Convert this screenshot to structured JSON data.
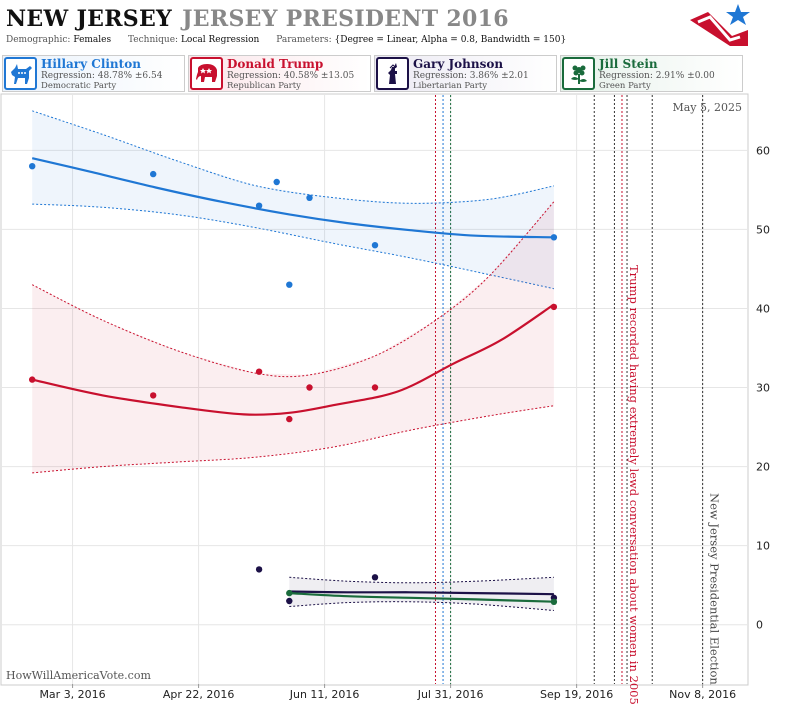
{
  "header": {
    "state": "NEW JERSEY",
    "race": "JERSEY PRESIDENT 2016",
    "demographic_label": "Demographic:",
    "demographic": "Females",
    "technique_label": "Technique:",
    "technique": "Local Regression",
    "parameters_label": "Parameters:",
    "parameters": "{Degree = Linear, Alpha = 0.8, Bandwidth = 150}"
  },
  "candidates": [
    {
      "name": "Hillary Clinton",
      "regression": "Regression: 48.78% ±6.54",
      "party": "Democratic Party",
      "color": "#1f77d4",
      "icon": "donkey-icon"
    },
    {
      "name": "Donald Trump",
      "regression": "Regression: 40.58% ±13.05",
      "party": "Republican Party",
      "color": "#c8102e",
      "icon": "elephant-icon"
    },
    {
      "name": "Gary Johnson",
      "regression": "Regression: 3.86% ±2.01",
      "party": "Libertarian Party",
      "color": "#1c1147",
      "icon": "statue-of-liberty-icon"
    },
    {
      "name": "Jill Stein",
      "regression": "Regression: 2.91% ±0.00",
      "party": "Green Party",
      "color": "#1a6b3c",
      "icon": "flower-icon"
    }
  ],
  "watermark": "HowWillAmericaVote.com",
  "date_label": "May 5, 2025",
  "chart_data": {
    "type": "scatter",
    "title": "",
    "xlabel": "",
    "ylabel": "",
    "x_ticks": [
      "Mar 3, 2016",
      "Apr 22, 2016",
      "Jun 11, 2016",
      "Jul 31, 2016",
      "Sep 19, 2016",
      "Nov 8, 2016"
    ],
    "x_range": [
      "2016-02-04",
      "2016-11-26"
    ],
    "y_ticks": [
      0,
      10,
      20,
      30,
      40,
      50,
      60
    ],
    "ylim": [
      -7.5,
      67
    ],
    "grid": true,
    "series": [
      {
        "name": "Hillary Clinton",
        "color": "#1f77d4",
        "points": [
          [
            "2016-02-16",
            58
          ],
          [
            "2016-04-04",
            57
          ],
          [
            "2016-05-16",
            53
          ],
          [
            "2016-05-23",
            56
          ],
          [
            "2016-05-28",
            43
          ],
          [
            "2016-06-05",
            54
          ],
          [
            "2016-07-01",
            48
          ],
          [
            "2016-09-10",
            49
          ]
        ],
        "trend": [
          [
            "2016-02-16",
            59
          ],
          [
            "2016-03-10",
            57.3
          ],
          [
            "2016-04-05",
            55.3
          ],
          [
            "2016-05-01",
            53.5
          ],
          [
            "2016-05-28",
            51.9
          ],
          [
            "2016-06-20",
            50.8
          ],
          [
            "2016-07-15",
            49.9
          ],
          [
            "2016-08-10",
            49.2
          ],
          [
            "2016-09-10",
            49
          ]
        ],
        "upper": [
          [
            "2016-02-16",
            65
          ],
          [
            "2016-03-15",
            62
          ],
          [
            "2016-04-15",
            58.5
          ],
          [
            "2016-05-15",
            55.5
          ],
          [
            "2016-06-15",
            54
          ],
          [
            "2016-07-15",
            53.3
          ],
          [
            "2016-08-15",
            53.8
          ],
          [
            "2016-09-10",
            55.5
          ]
        ],
        "lower": [
          [
            "2016-02-16",
            53.2
          ],
          [
            "2016-03-15",
            52.8
          ],
          [
            "2016-04-15",
            51.8
          ],
          [
            "2016-05-15",
            50.2
          ],
          [
            "2016-06-15",
            48.2
          ],
          [
            "2016-07-15",
            46.4
          ],
          [
            "2016-08-15",
            44.3
          ],
          [
            "2016-09-10",
            42.5
          ]
        ]
      },
      {
        "name": "Donald Trump",
        "color": "#c8102e",
        "points": [
          [
            "2016-02-16",
            31
          ],
          [
            "2016-04-04",
            29
          ],
          [
            "2016-05-16",
            32
          ],
          [
            "2016-05-28",
            26
          ],
          [
            "2016-06-05",
            30
          ],
          [
            "2016-07-01",
            30
          ],
          [
            "2016-09-10",
            40.2
          ]
        ],
        "trend": [
          [
            "2016-02-16",
            31
          ],
          [
            "2016-03-15",
            29
          ],
          [
            "2016-04-15",
            27.5
          ],
          [
            "2016-05-10",
            26.6
          ],
          [
            "2016-05-28",
            26.8
          ],
          [
            "2016-06-15",
            27.8
          ],
          [
            "2016-07-10",
            29.5
          ],
          [
            "2016-08-01",
            33
          ],
          [
            "2016-08-20",
            36
          ],
          [
            "2016-09-10",
            40.5
          ]
        ],
        "upper": [
          [
            "2016-02-16",
            43
          ],
          [
            "2016-03-15",
            38.5
          ],
          [
            "2016-04-15",
            34.5
          ],
          [
            "2016-05-15",
            31.8
          ],
          [
            "2016-06-05",
            31.6
          ],
          [
            "2016-07-01",
            34
          ],
          [
            "2016-07-25",
            38.5
          ],
          [
            "2016-08-15",
            44
          ],
          [
            "2016-09-10",
            53.5
          ]
        ],
        "lower": [
          [
            "2016-02-16",
            19.2
          ],
          [
            "2016-03-15",
            20
          ],
          [
            "2016-04-15",
            20.6
          ],
          [
            "2016-05-15",
            21.2
          ],
          [
            "2016-06-15",
            22.5
          ],
          [
            "2016-07-15",
            24.6
          ],
          [
            "2016-08-15",
            26.4
          ],
          [
            "2016-09-10",
            27.7
          ]
        ]
      },
      {
        "name": "Gary Johnson",
        "color": "#1c1147",
        "points": [
          [
            "2016-05-28",
            3
          ],
          [
            "2016-05-16",
            7
          ],
          [
            "2016-07-01",
            6
          ],
          [
            "2016-09-10",
            3.4
          ]
        ],
        "trend": [
          [
            "2016-05-28",
            4.2
          ],
          [
            "2016-06-20",
            4.1
          ],
          [
            "2016-07-15",
            4.1
          ],
          [
            "2016-08-10",
            4.0
          ],
          [
            "2016-09-10",
            3.86
          ]
        ],
        "upper": [
          [
            "2016-05-28",
            6
          ],
          [
            "2016-06-20",
            5.5
          ],
          [
            "2016-07-15",
            5.3
          ],
          [
            "2016-08-10",
            5.5
          ],
          [
            "2016-09-10",
            6
          ]
        ],
        "lower": [
          [
            "2016-05-28",
            2.3
          ],
          [
            "2016-06-20",
            2.8
          ],
          [
            "2016-07-15",
            2.9
          ],
          [
            "2016-08-10",
            2.6
          ],
          [
            "2016-09-10",
            1.8
          ]
        ]
      },
      {
        "name": "Jill Stein",
        "color": "#1a6b3c",
        "points": [
          [
            "2016-05-28",
            4
          ],
          [
            "2016-09-10",
            2.9
          ]
        ],
        "trend": [
          [
            "2016-05-28",
            4.0
          ],
          [
            "2016-06-20",
            3.6
          ],
          [
            "2016-07-15",
            3.4
          ],
          [
            "2016-08-10",
            3.2
          ],
          [
            "2016-09-10",
            2.91
          ]
        ]
      }
    ],
    "event_lines": [
      {
        "date": "2016-07-25",
        "color": "#c8102e",
        "style": "dotted"
      },
      {
        "date": "2016-07-28",
        "color": "#1f77d4",
        "style": "dotted"
      },
      {
        "date": "2016-07-31",
        "color": "#1a6b3c",
        "style": "dotted"
      },
      {
        "date": "2016-09-26",
        "color": "#333333",
        "style": "dotted"
      },
      {
        "date": "2016-10-04",
        "color": "#333333",
        "style": "dotted"
      },
      {
        "date": "2016-10-07",
        "color": "#c8102e",
        "style": "dotted"
      },
      {
        "date": "2016-10-09",
        "color": "#333333",
        "style": "dotted"
      },
      {
        "date": "2016-10-19",
        "color": "#333333",
        "style": "dotted"
      },
      {
        "date": "2016-11-08",
        "color": "#333333",
        "style": "dotted"
      }
    ],
    "annotations": [
      {
        "text": "Trump recorded having extremely lewd conversation about women in 2005",
        "date": "2016-10-07",
        "color": "#c8102e"
      },
      {
        "text": "New Jersey Presidential Election",
        "date": "2016-11-08",
        "color": "#444444"
      }
    ]
  }
}
